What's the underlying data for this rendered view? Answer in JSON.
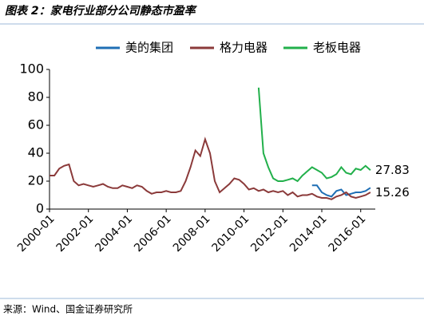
{
  "title": "图表 2：家电行业部分公司静态市盈率",
  "source": "来源：Wind、国金证券研究所",
  "chart_data": {
    "type": "line",
    "x": [
      "2000-01",
      "2000-04",
      "2000-07",
      "2000-10",
      "2001-01",
      "2001-04",
      "2001-07",
      "2001-10",
      "2002-01",
      "2002-04",
      "2002-07",
      "2002-10",
      "2003-01",
      "2003-04",
      "2003-07",
      "2003-10",
      "2004-01",
      "2004-04",
      "2004-07",
      "2004-10",
      "2005-01",
      "2005-04",
      "2005-07",
      "2005-10",
      "2006-01",
      "2006-04",
      "2006-07",
      "2006-10",
      "2007-01",
      "2007-04",
      "2007-07",
      "2007-10",
      "2008-01",
      "2008-04",
      "2008-07",
      "2008-10",
      "2009-01",
      "2009-04",
      "2009-07",
      "2009-10",
      "2010-01",
      "2010-04",
      "2010-07",
      "2010-10",
      "2011-01",
      "2011-04",
      "2011-07",
      "2011-10",
      "2012-01",
      "2012-04",
      "2012-07",
      "2012-10",
      "2013-01",
      "2013-04",
      "2013-07",
      "2013-10",
      "2014-01",
      "2014-04",
      "2014-07",
      "2014-10",
      "2015-01",
      "2015-04",
      "2015-07",
      "2015-10",
      "2016-01",
      "2016-04",
      "2016-07"
    ],
    "series": [
      {
        "name": "美的集团",
        "color": "#1f6fb5",
        "values": [
          null,
          null,
          null,
          null,
          null,
          null,
          null,
          null,
          null,
          null,
          null,
          null,
          null,
          null,
          null,
          null,
          null,
          null,
          null,
          null,
          null,
          null,
          null,
          null,
          null,
          null,
          null,
          null,
          null,
          null,
          null,
          null,
          null,
          null,
          null,
          null,
          null,
          null,
          null,
          null,
          null,
          null,
          null,
          null,
          null,
          null,
          null,
          null,
          null,
          null,
          null,
          null,
          null,
          null,
          17,
          17,
          12,
          10,
          9,
          13,
          14,
          10,
          11,
          12,
          12,
          13,
          15.26
        ]
      },
      {
        "name": "格力电器",
        "color": "#8b3a3a",
        "values": [
          24,
          24,
          29,
          31,
          32,
          20,
          17,
          18,
          17,
          16,
          17,
          18,
          16,
          15,
          15,
          17,
          16,
          15,
          17,
          16,
          13,
          11,
          12,
          12,
          13,
          12,
          12,
          13,
          20,
          30,
          42,
          38,
          50,
          40,
          20,
          12,
          15,
          18,
          22,
          21,
          18,
          14,
          15,
          13,
          14,
          12,
          13,
          12,
          13,
          10,
          12,
          9,
          10,
          10,
          11,
          9,
          8,
          8,
          7,
          9,
          10,
          12,
          9,
          8,
          9,
          10,
          12
        ]
      },
      {
        "name": "老板电器",
        "color": "#22b04b",
        "values": [
          null,
          null,
          null,
          null,
          null,
          null,
          null,
          null,
          null,
          null,
          null,
          null,
          null,
          null,
          null,
          null,
          null,
          null,
          null,
          null,
          null,
          null,
          null,
          null,
          null,
          null,
          null,
          null,
          null,
          null,
          null,
          null,
          null,
          null,
          null,
          null,
          null,
          null,
          null,
          null,
          null,
          null,
          null,
          87,
          40,
          30,
          22,
          20,
          20,
          21,
          22,
          20,
          24,
          27,
          30,
          28,
          26,
          22,
          23,
          25,
          30,
          26,
          25,
          29,
          28,
          31,
          27.83
        ]
      }
    ],
    "xlim": [
      "2000-01",
      "2016-10"
    ],
    "xticks": [
      "2000-01",
      "2002-01",
      "2004-01",
      "2006-01",
      "2008-01",
      "2010-01",
      "2012-01",
      "2014-01",
      "2016-01"
    ],
    "ylim": [
      0,
      100
    ],
    "yticks": [
      0,
      20,
      40,
      60,
      80,
      100
    ]
  }
}
